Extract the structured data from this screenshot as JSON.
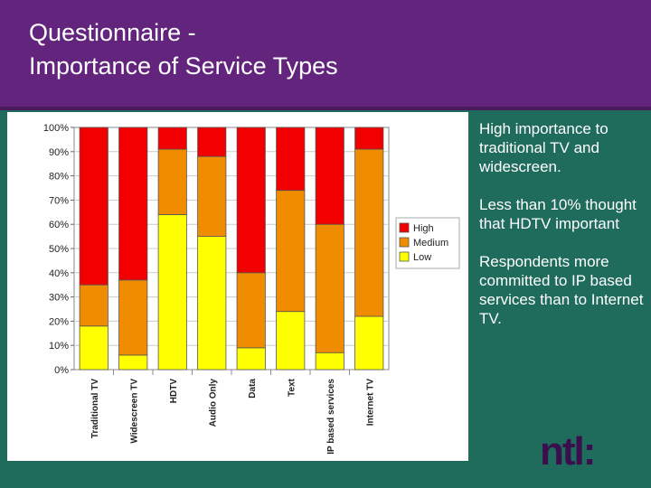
{
  "slide": {
    "title_line1": "Questionnaire -",
    "title_line2": "Importance of Service Types",
    "notes": [
      "High importance to traditional TV  and widescreen.",
      "Less than 10% thought that HDTV important",
      "Respondents more committed to IP based services than to Internet TV."
    ],
    "logo_text": "ntl:"
  },
  "colors": {
    "header": "#63247d",
    "background": "#1f6b5c",
    "high": "#f20000",
    "medium": "#f08c00",
    "low": "#ffff00"
  },
  "chart_data": {
    "type": "bar",
    "stacked": true,
    "percent": true,
    "title": "",
    "xlabel": "",
    "ylabel": "",
    "ylim": [
      0,
      100
    ],
    "yticks": [
      "0%",
      "10%",
      "20%",
      "30%",
      "40%",
      "50%",
      "60%",
      "70%",
      "80%",
      "90%",
      "100%"
    ],
    "categories": [
      "Traditional TV",
      "Widescreen TV",
      "HDTV",
      "Audio Only",
      "Data",
      "Text",
      "IP based services",
      "Internet TV"
    ],
    "series": [
      {
        "name": "Low",
        "values": [
          18,
          6,
          64,
          55,
          9,
          24,
          7,
          22
        ]
      },
      {
        "name": "Medium",
        "values": [
          17,
          31,
          27,
          33,
          31,
          50,
          53,
          69
        ]
      },
      {
        "name": "High",
        "values": [
          65,
          63,
          9,
          12,
          60,
          26,
          40,
          9
        ]
      }
    ],
    "legend": [
      "High",
      "Medium",
      "Low"
    ],
    "legend_position": "right",
    "grid": true
  }
}
